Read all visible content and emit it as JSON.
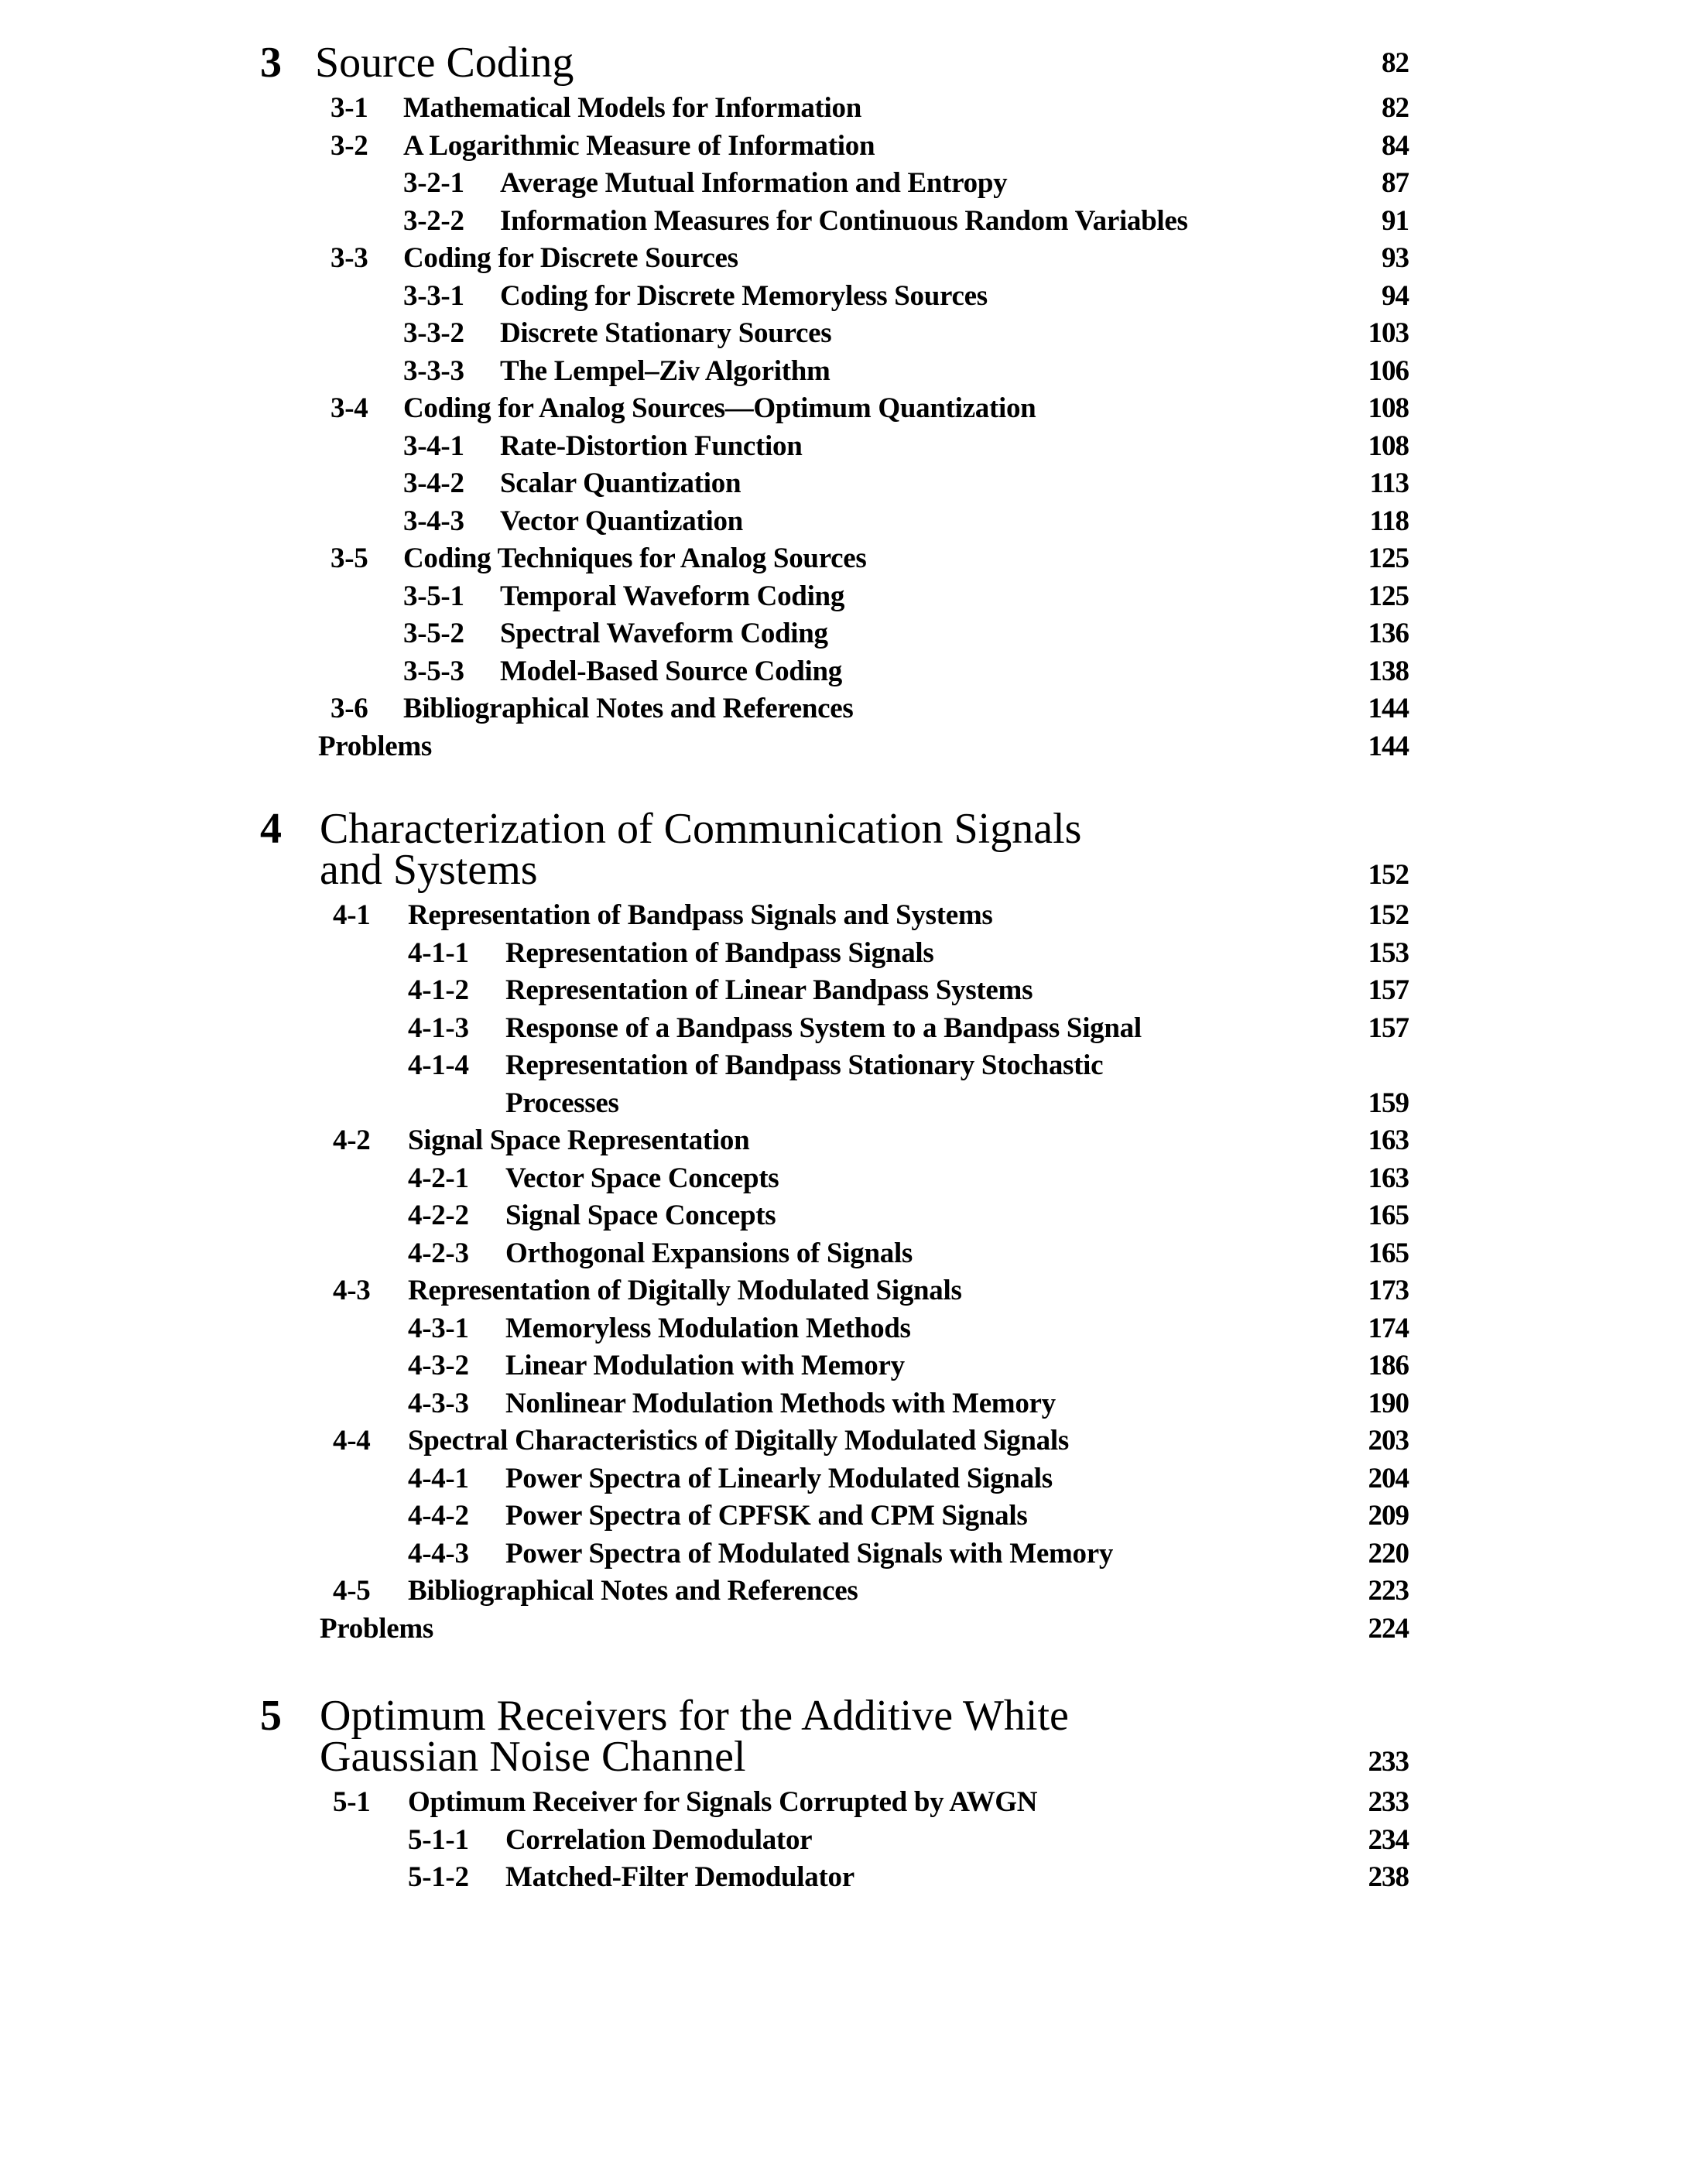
{
  "chapters": [
    {
      "number": "3",
      "title_lines": [
        "Source Coding"
      ],
      "page": "82",
      "entries": [
        {
          "level": 1,
          "num": "3-1",
          "title": "Mathematical Models for Information",
          "page": "82"
        },
        {
          "level": 1,
          "num": "3-2",
          "title": "A Logarithmic Measure of Information",
          "page": "84"
        },
        {
          "level": 2,
          "num": "3-2-1",
          "title": "Average Mutual Information and Entropy",
          "page": "87"
        },
        {
          "level": 2,
          "num": "3-2-2",
          "title": "Information Measures for Continuous Random Variables",
          "page": "91"
        },
        {
          "level": 1,
          "num": "3-3",
          "title": "Coding for Discrete Sources",
          "page": "93"
        },
        {
          "level": 2,
          "num": "3-3-1",
          "title": "Coding for Discrete Memoryless Sources",
          "page": "94"
        },
        {
          "level": 2,
          "num": "3-3-2",
          "title": "Discrete Stationary Sources",
          "page": "103"
        },
        {
          "level": 2,
          "num": "3-3-3",
          "title": "The Lempel–Ziv Algorithm",
          "page": "106"
        },
        {
          "level": 1,
          "num": "3-4",
          "title": "Coding for Analog Sources—Optimum Quantization",
          "page": "108"
        },
        {
          "level": 2,
          "num": "3-4-1",
          "title": "Rate-Distortion Function",
          "page": "108"
        },
        {
          "level": 2,
          "num": "3-4-2",
          "title": "Scalar Quantization",
          "page": "113"
        },
        {
          "level": 2,
          "num": "3-4-3",
          "title": "Vector Quantization",
          "page": "118"
        },
        {
          "level": 1,
          "num": "3-5",
          "title": "Coding Techniques for Analog Sources",
          "page": "125"
        },
        {
          "level": 2,
          "num": "3-5-1",
          "title": "Temporal Waveform Coding",
          "page": "125"
        },
        {
          "level": 2,
          "num": "3-5-2",
          "title": "Spectral Waveform Coding",
          "page": "136"
        },
        {
          "level": 2,
          "num": "3-5-3",
          "title": "Model-Based Source Coding",
          "page": "138"
        },
        {
          "level": 1,
          "num": "3-6",
          "title": "Bibliographical Notes and References",
          "page": "144"
        },
        {
          "level": 0,
          "num": "",
          "title": "Problems",
          "page": "144"
        }
      ]
    },
    {
      "number": "4",
      "title_lines": [
        "Characterization of Communication Signals",
        "and Systems"
      ],
      "page": "152",
      "entries": [
        {
          "level": 1,
          "num": "4-1",
          "title": "Representation of Bandpass Signals and Systems",
          "page": "152"
        },
        {
          "level": 2,
          "num": "4-1-1",
          "title": "Representation of Bandpass Signals",
          "page": "153"
        },
        {
          "level": 2,
          "num": "4-1-2",
          "title": "Representation of Linear Bandpass Systems",
          "page": "157"
        },
        {
          "level": 2,
          "num": "4-1-3",
          "title": "Response of a Bandpass System to a Bandpass Signal",
          "page": "157"
        },
        {
          "level": 2,
          "num": "4-1-4",
          "title": "Representation of Bandpass Stationary Stochastic",
          "page": ""
        },
        {
          "level": 3,
          "num": "",
          "title": "Processes",
          "page": "159"
        },
        {
          "level": 1,
          "num": "4-2",
          "title": "Signal Space Representation",
          "page": "163"
        },
        {
          "level": 2,
          "num": "4-2-1",
          "title": "Vector Space Concepts",
          "page": "163"
        },
        {
          "level": 2,
          "num": "4-2-2",
          "title": "Signal Space Concepts",
          "page": "165"
        },
        {
          "level": 2,
          "num": "4-2-3",
          "title": "Orthogonal Expansions of Signals",
          "page": "165"
        },
        {
          "level": 1,
          "num": "4-3",
          "title": "Representation of Digitally Modulated Signals",
          "page": "173"
        },
        {
          "level": 2,
          "num": "4-3-1",
          "title": "Memoryless Modulation Methods",
          "page": "174"
        },
        {
          "level": 2,
          "num": "4-3-2",
          "title": "Linear Modulation with Memory",
          "page": "186"
        },
        {
          "level": 2,
          "num": "4-3-3",
          "title": "Nonlinear Modulation Methods with Memory",
          "page": "190"
        },
        {
          "level": 1,
          "num": "4-4",
          "title": "Spectral Characteristics of Digitally Modulated Signals",
          "page": "203"
        },
        {
          "level": 2,
          "num": "4-4-1",
          "title": "Power Spectra of Linearly Modulated Signals",
          "page": "204"
        },
        {
          "level": 2,
          "num": "4-4-2",
          "title": "Power Spectra of CPFSK and CPM Signals",
          "page": "209"
        },
        {
          "level": 2,
          "num": "4-4-3",
          "title": "Power Spectra of Modulated Signals with Memory",
          "page": "220"
        },
        {
          "level": 1,
          "num": "4-5",
          "title": "Bibliographical Notes and References",
          "page": "223"
        },
        {
          "level": 0,
          "num": "",
          "title": "Problems",
          "page": "224"
        }
      ]
    },
    {
      "number": "5",
      "title_lines": [
        "Optimum Receivers for the Additive White",
        "Gaussian Noise Channel"
      ],
      "page": "233",
      "entries": [
        {
          "level": 1,
          "num": "5-1",
          "title": "Optimum Receiver for Signals Corrupted by AWGN",
          "page": "233"
        },
        {
          "level": 2,
          "num": "5-1-1",
          "title": "Correlation Demodulator",
          "page": "234"
        },
        {
          "level": 2,
          "num": "5-1-2",
          "title": "Matched-Filter Demodulator",
          "page": "238"
        }
      ]
    }
  ]
}
